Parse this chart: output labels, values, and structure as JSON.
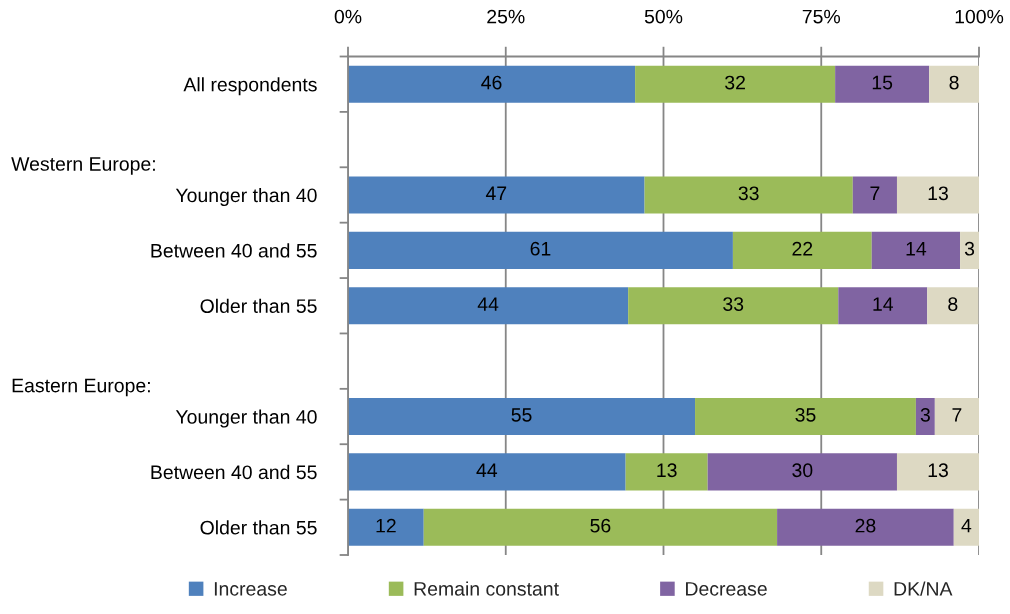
{
  "chart_data": {
    "type": "bar",
    "orientation": "horizontal",
    "stacked": true,
    "categories": [
      "All respondents",
      null,
      "Younger than 40",
      "Between 40 and 55",
      "Older than 55",
      null,
      "Younger than 40",
      "Between 40 and 55",
      "Older than 55"
    ],
    "series": [
      {
        "name": "Increase",
        "color": "#4f81bd",
        "values": [
          45.5,
          null,
          47,
          61,
          44.4,
          null,
          55,
          44,
          12
        ],
        "value_labels": [
          "46",
          null,
          "47",
          "61",
          "44",
          null,
          "55",
          "44",
          "12"
        ]
      },
      {
        "name": "Remain constant",
        "color": "#9bbb59",
        "values": [
          31.7,
          null,
          33,
          22,
          33.3,
          null,
          35,
          13,
          56
        ],
        "value_labels": [
          "32",
          null,
          "33",
          "22",
          "33",
          null,
          "35",
          "13",
          "56"
        ]
      },
      {
        "name": "Decrease",
        "color": "#8064a2",
        "values": [
          14.9,
          null,
          7,
          14,
          14.1,
          null,
          3,
          30,
          28
        ],
        "value_labels": [
          "15",
          null,
          "7",
          "14",
          "14",
          null,
          "3",
          "30",
          "28"
        ]
      },
      {
        "name": "DK/NA",
        "color": "#ddd9c3",
        "values": [
          7.9,
          null,
          13,
          3,
          8.1,
          null,
          7,
          13,
          4
        ],
        "value_labels": [
          "8",
          null,
          "13",
          "3",
          "8",
          null,
          "7",
          "13",
          "4"
        ]
      }
    ],
    "xlim": [
      0,
      100
    ],
    "xticks": [
      {
        "value": 0,
        "label": "0%"
      },
      {
        "value": 25,
        "label": "25%"
      },
      {
        "value": 50,
        "label": "50%"
      },
      {
        "value": 75,
        "label": "75%"
      },
      {
        "value": 100,
        "label": "100%"
      }
    ],
    "annotations": [
      "Western Europe:",
      "Eastern Europe:"
    ],
    "grid": "x",
    "legend": "bottom"
  }
}
